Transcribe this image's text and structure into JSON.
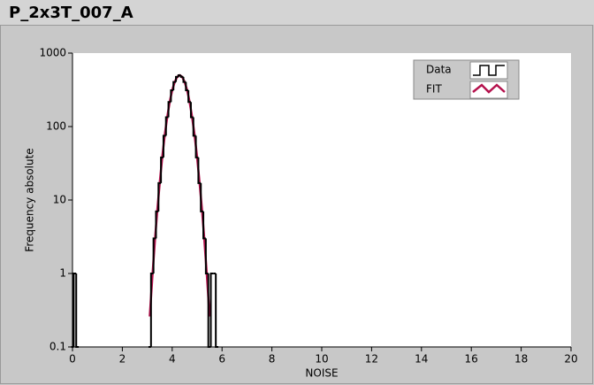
{
  "chart_data": {
    "type": "line",
    "title": "P_2x3T_007_A",
    "x_label": "NOISE",
    "y_label": "Frequency absolute",
    "yscale": "log",
    "xlim": [
      0,
      20
    ],
    "ylim": [
      0.1,
      1000
    ],
    "xticks": [
      0,
      2,
      4,
      6,
      8,
      10,
      12,
      14,
      16,
      18,
      20
    ],
    "yticks": [
      0.1,
      1,
      10,
      100,
      1000
    ],
    "legend": "upper right",
    "series": [
      {
        "name": "Data",
        "color": "#000000",
        "drawstyle": "steps",
        "x": [
          0.0,
          0.1,
          0.2,
          3.1,
          3.2,
          3.3,
          3.4,
          3.5,
          3.6,
          3.7,
          3.8,
          3.9,
          4.0,
          4.1,
          4.2,
          4.3,
          4.4,
          4.5,
          4.6,
          4.7,
          4.8,
          4.9,
          5.0,
          5.1,
          5.2,
          5.3,
          5.4,
          5.5,
          5.6,
          5.7,
          5.8
        ],
        "values": [
          0,
          1,
          0,
          0,
          1,
          3,
          7,
          17,
          38,
          75,
          134,
          216,
          312,
          405,
          474,
          500,
          474,
          405,
          312,
          216,
          134,
          75,
          38,
          17,
          7,
          3,
          1,
          0,
          1,
          1,
          0
        ]
      },
      {
        "name": "FIT",
        "color": "#b5124d",
        "x": [
          3.1,
          3.2,
          3.3,
          3.4,
          3.5,
          3.6,
          3.7,
          3.8,
          3.9,
          4.0,
          4.1,
          4.2,
          4.3,
          4.4,
          4.5,
          4.6,
          4.7,
          4.8,
          4.9,
          5.0,
          5.1,
          5.2,
          5.3,
          5.4,
          5.5
        ],
        "values": [
          0.26,
          0.86,
          2.6,
          7.1,
          17,
          38,
          76,
          134,
          216,
          312,
          405,
          474,
          500,
          474,
          405,
          312,
          216,
          134,
          76,
          38,
          17,
          7.1,
          2.6,
          0.86,
          0.26
        ]
      }
    ]
  }
}
